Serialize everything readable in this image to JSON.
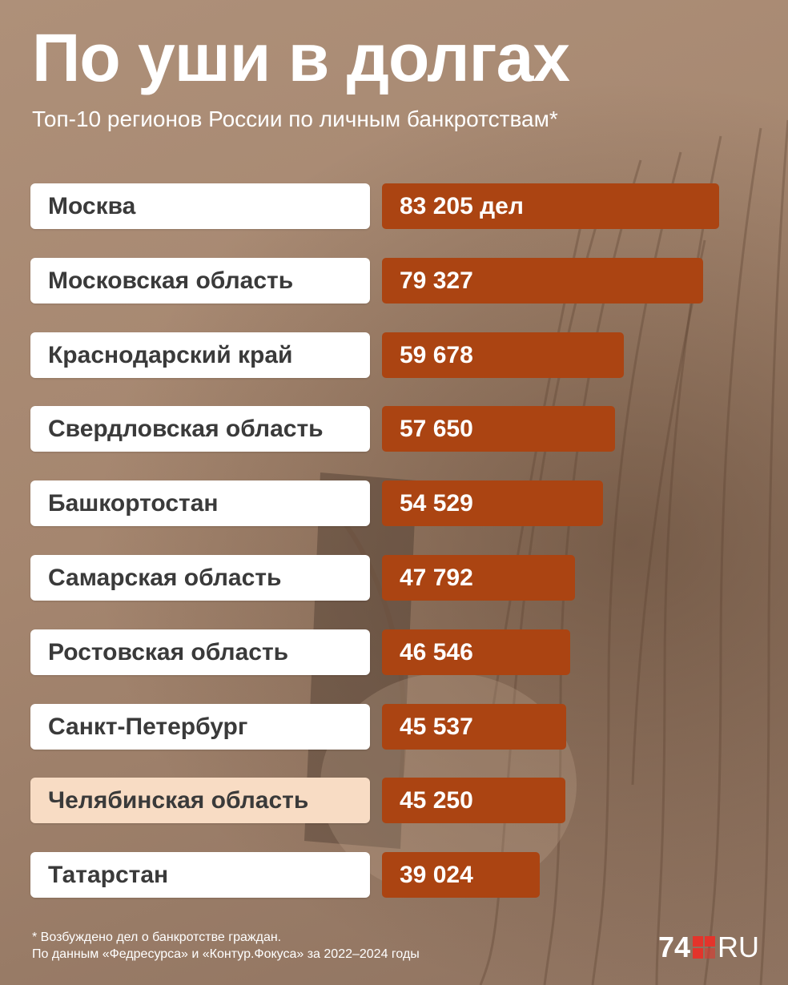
{
  "header": {
    "title": "По уши в долгах",
    "subtitle": "Топ-10 регионов России по личным банкротствам*"
  },
  "chart_data": {
    "type": "bar",
    "orientation": "horizontal",
    "title": "По уши в долгах",
    "subtitle": "Топ-10 регионов России по личным банкротствам*",
    "categories": [
      "Москва",
      "Московская область",
      "Краснодарский край",
      "Свердловская область",
      "Башкортостан",
      "Самарская область",
      "Ростовская область",
      "Санкт-Петербург",
      "Челябинская область",
      "Татарстан"
    ],
    "values": [
      83205,
      79327,
      59678,
      57650,
      54529,
      47792,
      46546,
      45537,
      45250,
      39024
    ],
    "value_labels": [
      "83 205 дел",
      "79 327",
      "59 678",
      "57 650",
      "54 529",
      "47 792",
      "46 546",
      "45 537",
      "45 250",
      "39 024"
    ],
    "highlighted_category": "Челябинская область",
    "grid": false,
    "legend": "none"
  },
  "footnote": {
    "line1": "* Возбуждено дел о банкротстве граждан.",
    "line2": "По данным «Федресурса» и «Контур.Фокуса» за 2022–2024 годы"
  },
  "logo": {
    "number": "74",
    "suffix": "RU"
  },
  "colors": {
    "bar": "#ab4412",
    "label_background": "#ffffff",
    "highlight_background": "#f8dcc4",
    "logo_mark": "#e3342b",
    "text_light": "#ffffff",
    "text_dark": "#3a3a3a"
  }
}
